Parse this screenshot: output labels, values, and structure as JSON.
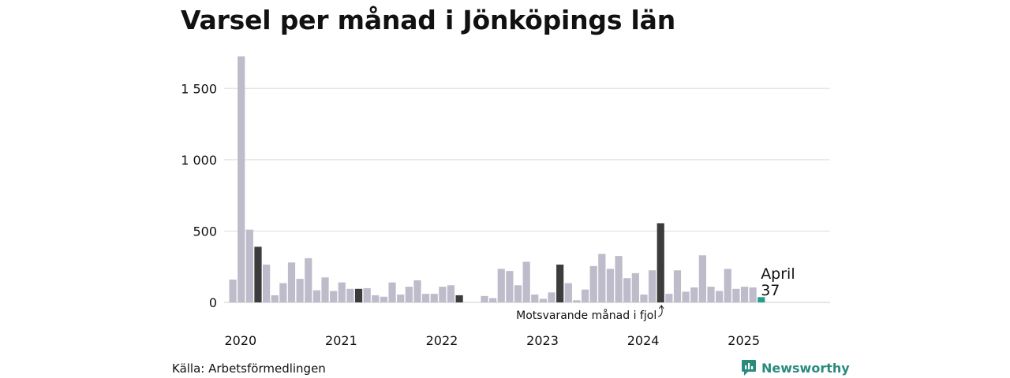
{
  "title": "Varsel per månad i Jönköpings län",
  "source": "Källa: Arbetsförmedlingen",
  "brand": {
    "name": "Newsworthy",
    "icon": "newsworthy-logo-icon"
  },
  "colors": {
    "bar": "#bebbca",
    "same_month": "#3c3c3c",
    "current": "#20a08c",
    "grid": "#dddddd",
    "brand": "#2a8a7c"
  },
  "chart_data": {
    "type": "bar",
    "title": "Varsel per månad i Jönköpings län",
    "xlabel": "",
    "ylabel": "",
    "ylim": [
      0,
      1750
    ],
    "yticks": [
      0,
      500,
      1000,
      1500
    ],
    "ytick_labels": [
      "0",
      "500",
      "1 000",
      "1 500"
    ],
    "grid": true,
    "x_start": "2020-01",
    "xtick_labels": [
      "2020",
      "2021",
      "2022",
      "2023",
      "2024",
      "2025"
    ],
    "values": [
      160,
      1725,
      510,
      390,
      265,
      50,
      135,
      280,
      165,
      310,
      85,
      175,
      80,
      140,
      95,
      95,
      100,
      50,
      40,
      140,
      55,
      110,
      155,
      60,
      60,
      110,
      120,
      50,
      0,
      0,
      45,
      30,
      235,
      220,
      120,
      285,
      55,
      25,
      70,
      265,
      135,
      15,
      90,
      255,
      340,
      235,
      325,
      170,
      205,
      55,
      225,
      555,
      60,
      225,
      75,
      105,
      330,
      110,
      80,
      235,
      95,
      110,
      105,
      37
    ],
    "highlighted_same_month": [
      "2020-04",
      "2021-04",
      "2022-04",
      "2023-04",
      "2024-04"
    ],
    "current": {
      "month": "2025-04",
      "label": "April",
      "value": "37"
    },
    "annotation": "Motsvarande månad i fjol"
  }
}
